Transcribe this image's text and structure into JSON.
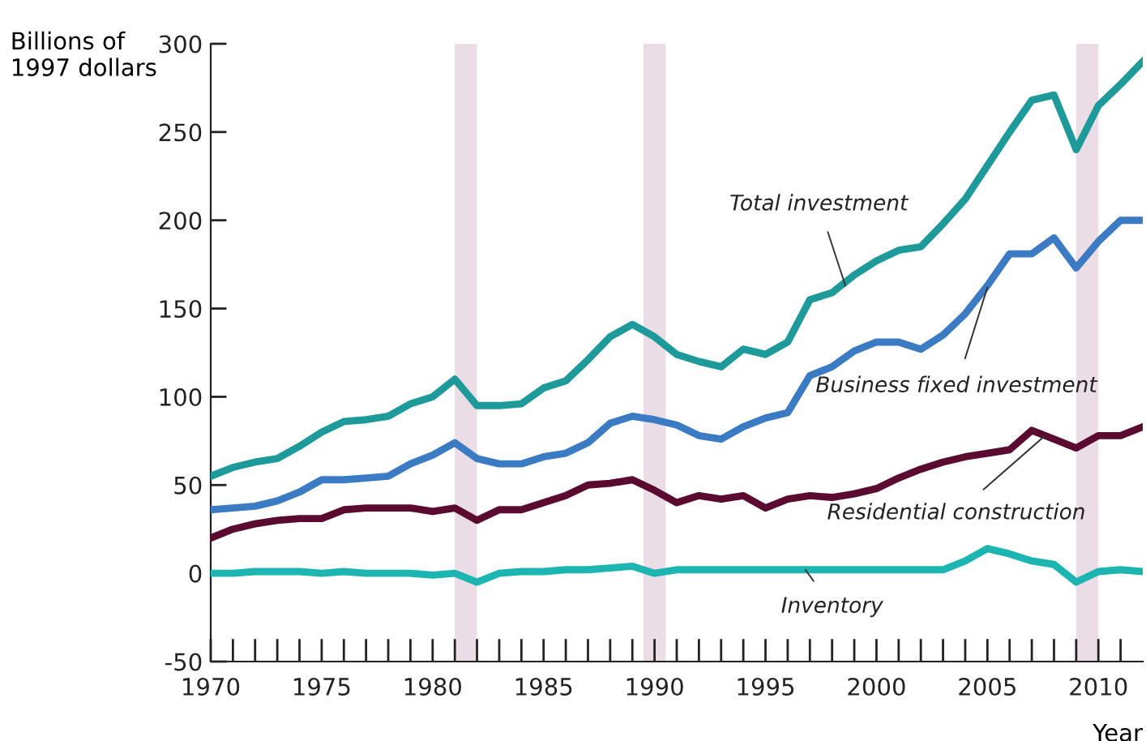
{
  "chart_data": {
    "type": "line",
    "ylabel": "Billions of\n1997 dollars",
    "xlabel": "Year",
    "x": [
      1970,
      1971,
      1972,
      1973,
      1974,
      1975,
      1976,
      1977,
      1978,
      1979,
      1980,
      1981,
      1982,
      1983,
      1984,
      1985,
      1986,
      1987,
      1988,
      1989,
      1990,
      1991,
      1992,
      1993,
      1994,
      1995,
      1996,
      1997,
      1998,
      1999,
      2000,
      2001,
      2002,
      2003,
      2004,
      2005,
      2006,
      2007,
      2008,
      2009,
      2010,
      2011,
      2012
    ],
    "series": [
      {
        "name": "Total investment",
        "color": "#1f9a9a",
        "values": [
          55,
          60,
          63,
          65,
          72,
          80,
          86,
          87,
          89,
          96,
          100,
          110,
          95,
          95,
          96,
          105,
          109,
          121,
          134,
          141,
          134,
          124,
          120,
          117,
          127,
          124,
          131,
          155,
          159,
          169,
          177,
          183,
          185,
          198,
          212,
          231,
          250,
          268,
          271,
          240,
          265,
          277,
          290
        ]
      },
      {
        "name": "Business fixed investment",
        "color": "#3b7bc4",
        "values": [
          36,
          37,
          38,
          41,
          46,
          53,
          53,
          54,
          55,
          62,
          67,
          74,
          65,
          62,
          62,
          66,
          68,
          74,
          85,
          89,
          87,
          84,
          78,
          76,
          83,
          88,
          91,
          112,
          117,
          126,
          131,
          131,
          127,
          135,
          147,
          163,
          181,
          181,
          190,
          173,
          188,
          200,
          200
        ]
      },
      {
        "name": "Residential construction",
        "color": "#5a0b2f",
        "values": [
          20,
          25,
          28,
          30,
          31,
          31,
          36,
          37,
          37,
          37,
          35,
          37,
          30,
          36,
          36,
          40,
          44,
          50,
          51,
          53,
          47,
          40,
          44,
          42,
          44,
          37,
          42,
          44,
          43,
          45,
          48,
          54,
          59,
          63,
          66,
          68,
          70,
          81,
          76,
          71,
          78,
          78,
          83
        ]
      },
      {
        "name": "Inventory",
        "color": "#1cb5b2",
        "values": [
          0,
          0,
          1,
          1,
          1,
          0,
          1,
          0,
          0,
          0,
          -1,
          0,
          -5,
          0,
          1,
          1,
          2,
          2,
          3,
          4,
          0,
          2,
          2,
          2,
          2,
          2,
          2,
          2,
          2,
          2,
          2,
          2,
          2,
          2,
          7,
          14,
          11,
          7,
          5,
          -5,
          1,
          2,
          1
        ]
      }
    ],
    "xlim": [
      1970,
      2012
    ],
    "xticks": [
      1970,
      {
        "value": 1971,
        "label": null
      },
      {
        "value": 1972,
        "label": null
      },
      {
        "value": 1973,
        "label": null
      },
      {
        "value": 1974,
        "label": null
      },
      1975,
      {
        "value": 1976,
        "label": null
      },
      {
        "value": 1977,
        "label": null
      },
      {
        "value": 1978,
        "label": null
      },
      {
        "value": 1979,
        "label": null
      },
      1980,
      {
        "value": 1981,
        "label": null
      },
      {
        "value": 1982,
        "label": null
      },
      {
        "value": 1983,
        "label": null
      },
      {
        "value": 1984,
        "label": null
      },
      1985,
      {
        "value": 1986,
        "label": null
      },
      {
        "value": 1987,
        "label": null
      },
      {
        "value": 1988,
        "label": null
      },
      {
        "value": 1989,
        "label": null
      },
      1990,
      {
        "value": 1991,
        "label": null
      },
      {
        "value": 1992,
        "label": null
      },
      {
        "value": 1993,
        "label": null
      },
      {
        "value": 1994,
        "label": null
      },
      1995,
      {
        "value": 1996,
        "label": null
      },
      {
        "value": 1997,
        "label": null
      },
      {
        "value": 1998,
        "label": null
      },
      {
        "value": 1999,
        "label": null
      },
      2000,
      {
        "value": 2001,
        "label": null
      },
      {
        "value": 2002,
        "label": null
      },
      {
        "value": 2003,
        "label": null
      },
      {
        "value": 2004,
        "label": null
      },
      2005,
      {
        "value": 2006,
        "label": null
      },
      {
        "value": 2007,
        "label": null
      },
      {
        "value": 2008,
        "label": null
      },
      {
        "value": 2009,
        "label": null
      },
      2010,
      {
        "value": 2011,
        "label": null
      }
    ],
    "ylim": [
      -50,
      300
    ],
    "yticks": [
      -50,
      0,
      50,
      100,
      150,
      200,
      250,
      300
    ],
    "bands": [
      {
        "axis": "x",
        "from": 1981,
        "to": 1982,
        "color": "#ebdde5"
      },
      {
        "axis": "x",
        "from": 1989.5,
        "to": 1990.5,
        "color": "#ebdde5"
      },
      {
        "axis": "x",
        "from": 2009,
        "to": 2010,
        "color": "#ebdde5"
      }
    ],
    "grid": false,
    "legend": false,
    "marker": "none",
    "line_style": "solid"
  }
}
